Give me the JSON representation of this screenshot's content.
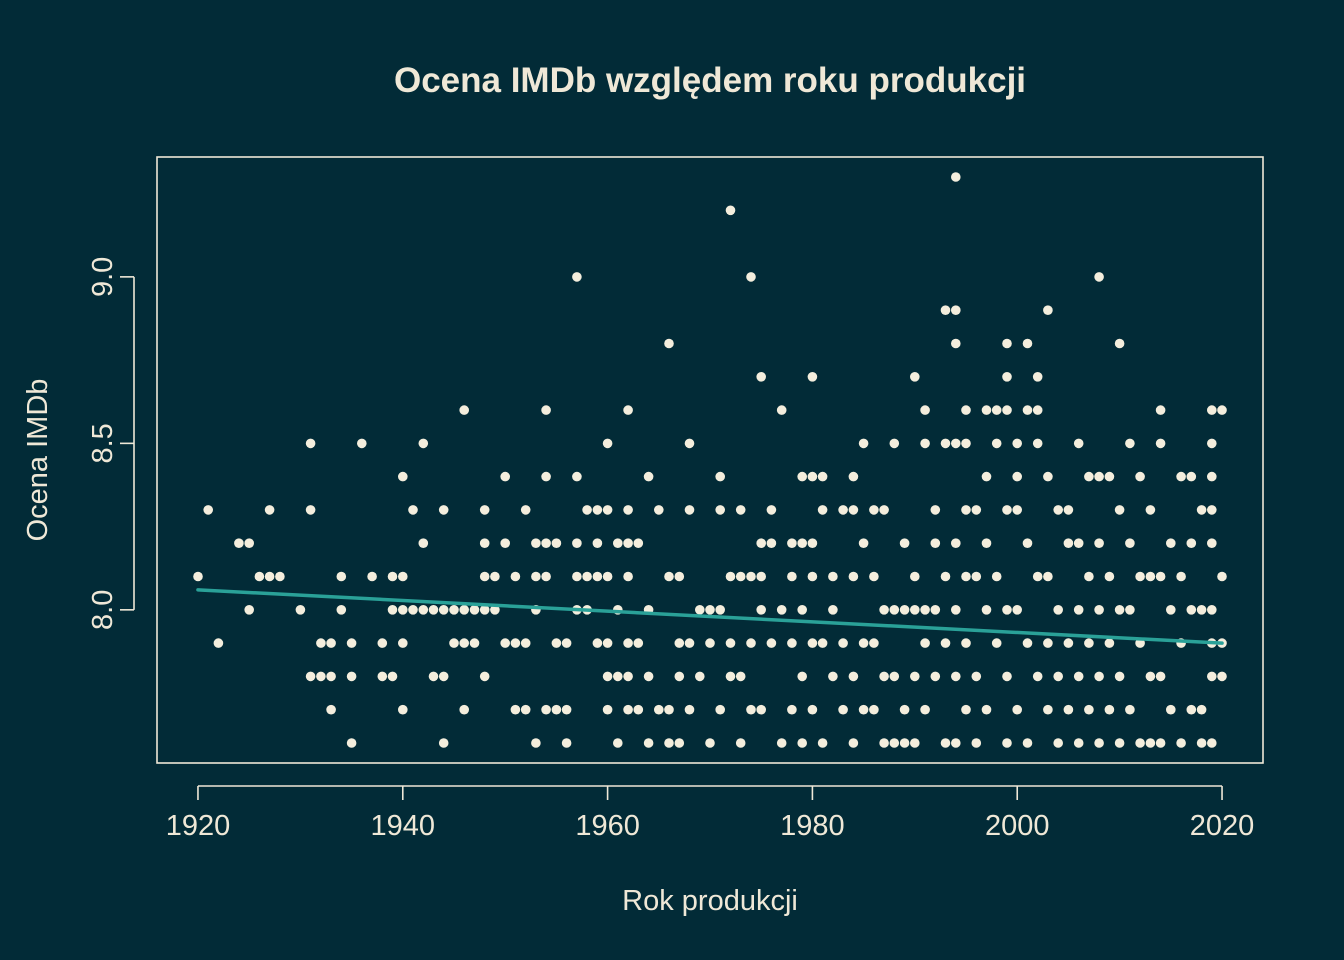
{
  "colors": {
    "background": "#022b37",
    "foreground": "#efe8d7",
    "points": "#f4eedd",
    "trend": "#2aa198"
  },
  "chart_data": {
    "type": "scatter",
    "title": "Ocena IMDb względem roku produkcji",
    "xlabel": "Rok produkcji",
    "ylabel": "Ocena IMDb",
    "xlim": [
      1916,
      2024
    ],
    "ylim": [
      7.54,
      9.36
    ],
    "xticks": [
      1920,
      1940,
      1960,
      1980,
      2000,
      2020
    ],
    "xtick_labels": [
      "1920",
      "1940",
      "1960",
      "1980",
      "2000",
      "2020"
    ],
    "yticks": [
      8.0,
      8.5,
      9.0
    ],
    "ytick_labels": [
      "8.0",
      "8.5",
      "9.0"
    ],
    "grid": false,
    "trend_line": {
      "x": [
        1920,
        2020
      ],
      "y": [
        8.06,
        7.9
      ]
    },
    "points": [
      [
        1920,
        8.1
      ],
      [
        1921,
        8.3
      ],
      [
        1922,
        7.9
      ],
      [
        1924,
        8.2
      ],
      [
        1925,
        8.2
      ],
      [
        1925,
        8.0
      ],
      [
        1926,
        8.1
      ],
      [
        1927,
        8.3
      ],
      [
        1927,
        8.1
      ],
      [
        1928,
        8.1
      ],
      [
        1930,
        8.0
      ],
      [
        1931,
        8.5
      ],
      [
        1931,
        8.3
      ],
      [
        1931,
        7.8
      ],
      [
        1932,
        7.9
      ],
      [
        1932,
        7.8
      ],
      [
        1933,
        7.9
      ],
      [
        1933,
        7.8
      ],
      [
        1933,
        7.7
      ],
      [
        1934,
        8.1
      ],
      [
        1934,
        8.0
      ],
      [
        1935,
        7.9
      ],
      [
        1935,
        7.8
      ],
      [
        1935,
        7.6
      ],
      [
        1936,
        8.5
      ],
      [
        1937,
        8.1
      ],
      [
        1938,
        7.9
      ],
      [
        1938,
        7.8
      ],
      [
        1939,
        8.1
      ],
      [
        1939,
        8.0
      ],
      [
        1939,
        7.8
      ],
      [
        1940,
        8.4
      ],
      [
        1940,
        8.1
      ],
      [
        1940,
        8.0
      ],
      [
        1940,
        7.9
      ],
      [
        1940,
        7.7
      ],
      [
        1941,
        8.3
      ],
      [
        1941,
        8.0
      ],
      [
        1942,
        8.5
      ],
      [
        1942,
        8.2
      ],
      [
        1942,
        8.0
      ],
      [
        1943,
        8.0
      ],
      [
        1943,
        7.8
      ],
      [
        1944,
        8.3
      ],
      [
        1944,
        8.0
      ],
      [
        1944,
        7.8
      ],
      [
        1944,
        7.6
      ],
      [
        1945,
        8.0
      ],
      [
        1945,
        7.9
      ],
      [
        1946,
        8.6
      ],
      [
        1946,
        8.0
      ],
      [
        1946,
        7.9
      ],
      [
        1946,
        7.7
      ],
      [
        1947,
        8.0
      ],
      [
        1947,
        7.9
      ],
      [
        1948,
        8.3
      ],
      [
        1948,
        8.2
      ],
      [
        1948,
        8.1
      ],
      [
        1948,
        8.0
      ],
      [
        1948,
        7.8
      ],
      [
        1949,
        8.1
      ],
      [
        1949,
        8.0
      ],
      [
        1950,
        8.4
      ],
      [
        1950,
        8.2
      ],
      [
        1950,
        7.9
      ],
      [
        1951,
        8.1
      ],
      [
        1951,
        7.9
      ],
      [
        1951,
        7.7
      ],
      [
        1952,
        8.3
      ],
      [
        1952,
        7.9
      ],
      [
        1952,
        7.7
      ],
      [
        1953,
        8.2
      ],
      [
        1953,
        8.1
      ],
      [
        1953,
        8.0
      ],
      [
        1953,
        7.6
      ],
      [
        1954,
        8.6
      ],
      [
        1954,
        8.4
      ],
      [
        1954,
        8.2
      ],
      [
        1954,
        8.1
      ],
      [
        1954,
        7.7
      ],
      [
        1955,
        8.2
      ],
      [
        1955,
        7.9
      ],
      [
        1955,
        7.7
      ],
      [
        1956,
        7.9
      ],
      [
        1956,
        7.7
      ],
      [
        1956,
        7.6
      ],
      [
        1957,
        9.0
      ],
      [
        1957,
        8.4
      ],
      [
        1957,
        8.2
      ],
      [
        1957,
        8.1
      ],
      [
        1957,
        8.0
      ],
      [
        1958,
        8.3
      ],
      [
        1958,
        8.1
      ],
      [
        1958,
        8.0
      ],
      [
        1959,
        8.3
      ],
      [
        1959,
        8.2
      ],
      [
        1959,
        8.1
      ],
      [
        1959,
        7.9
      ],
      [
        1960,
        8.5
      ],
      [
        1960,
        8.3
      ],
      [
        1960,
        8.1
      ],
      [
        1960,
        7.9
      ],
      [
        1960,
        7.8
      ],
      [
        1960,
        7.7
      ],
      [
        1961,
        8.2
      ],
      [
        1961,
        8.0
      ],
      [
        1961,
        7.8
      ],
      [
        1961,
        7.6
      ],
      [
        1962,
        8.6
      ],
      [
        1962,
        8.3
      ],
      [
        1962,
        8.2
      ],
      [
        1962,
        8.1
      ],
      [
        1962,
        7.9
      ],
      [
        1962,
        7.8
      ],
      [
        1962,
        7.7
      ],
      [
        1963,
        8.2
      ],
      [
        1963,
        7.9
      ],
      [
        1963,
        7.7
      ],
      [
        1964,
        8.4
      ],
      [
        1964,
        8.0
      ],
      [
        1964,
        7.8
      ],
      [
        1964,
        7.6
      ],
      [
        1965,
        8.3
      ],
      [
        1965,
        7.7
      ],
      [
        1966,
        8.8
      ],
      [
        1966,
        8.1
      ],
      [
        1966,
        7.7
      ],
      [
        1966,
        7.6
      ],
      [
        1967,
        8.1
      ],
      [
        1967,
        7.9
      ],
      [
        1967,
        7.8
      ],
      [
        1967,
        7.6
      ],
      [
        1968,
        8.5
      ],
      [
        1968,
        8.3
      ],
      [
        1968,
        7.9
      ],
      [
        1968,
        7.7
      ],
      [
        1969,
        8.0
      ],
      [
        1969,
        7.8
      ],
      [
        1970,
        8.0
      ],
      [
        1970,
        7.9
      ],
      [
        1970,
        7.6
      ],
      [
        1971,
        8.4
      ],
      [
        1971,
        8.3
      ],
      [
        1971,
        8.0
      ],
      [
        1971,
        7.7
      ],
      [
        1972,
        9.2
      ],
      [
        1972,
        8.1
      ],
      [
        1972,
        7.9
      ],
      [
        1972,
        7.8
      ],
      [
        1973,
        8.3
      ],
      [
        1973,
        8.1
      ],
      [
        1973,
        7.8
      ],
      [
        1973,
        7.6
      ],
      [
        1974,
        9.0
      ],
      [
        1974,
        8.1
      ],
      [
        1974,
        7.9
      ],
      [
        1974,
        7.7
      ],
      [
        1975,
        8.7
      ],
      [
        1975,
        8.2
      ],
      [
        1975,
        8.1
      ],
      [
        1975,
        8.0
      ],
      [
        1975,
        7.7
      ],
      [
        1976,
        8.3
      ],
      [
        1976,
        8.2
      ],
      [
        1976,
        7.9
      ],
      [
        1977,
        8.6
      ],
      [
        1977,
        8.0
      ],
      [
        1977,
        7.6
      ],
      [
        1978,
        8.2
      ],
      [
        1978,
        8.1
      ],
      [
        1978,
        7.9
      ],
      [
        1978,
        7.7
      ],
      [
        1979,
        8.4
      ],
      [
        1979,
        8.2
      ],
      [
        1979,
        8.0
      ],
      [
        1979,
        7.8
      ],
      [
        1979,
        7.6
      ],
      [
        1980,
        8.7
      ],
      [
        1980,
        8.4
      ],
      [
        1980,
        8.2
      ],
      [
        1980,
        8.1
      ],
      [
        1980,
        7.9
      ],
      [
        1980,
        7.7
      ],
      [
        1981,
        8.4
      ],
      [
        1981,
        8.3
      ],
      [
        1981,
        7.9
      ],
      [
        1981,
        7.6
      ],
      [
        1982,
        8.1
      ],
      [
        1982,
        8.0
      ],
      [
        1982,
        7.8
      ],
      [
        1983,
        8.3
      ],
      [
        1983,
        7.9
      ],
      [
        1983,
        7.7
      ],
      [
        1984,
        8.4
      ],
      [
        1984,
        8.3
      ],
      [
        1984,
        8.1
      ],
      [
        1984,
        7.8
      ],
      [
        1984,
        7.6
      ],
      [
        1985,
        8.5
      ],
      [
        1985,
        8.2
      ],
      [
        1985,
        7.9
      ],
      [
        1985,
        7.7
      ],
      [
        1986,
        8.3
      ],
      [
        1986,
        8.1
      ],
      [
        1986,
        7.9
      ],
      [
        1986,
        7.7
      ],
      [
        1987,
        8.3
      ],
      [
        1987,
        8.0
      ],
      [
        1987,
        7.8
      ],
      [
        1987,
        7.6
      ],
      [
        1988,
        8.5
      ],
      [
        1988,
        8.0
      ],
      [
        1988,
        7.8
      ],
      [
        1988,
        7.6
      ],
      [
        1989,
        8.2
      ],
      [
        1989,
        8.0
      ],
      [
        1989,
        7.7
      ],
      [
        1989,
        7.6
      ],
      [
        1990,
        8.7
      ],
      [
        1990,
        8.1
      ],
      [
        1990,
        8.0
      ],
      [
        1990,
        7.8
      ],
      [
        1990,
        7.6
      ],
      [
        1991,
        8.6
      ],
      [
        1991,
        8.5
      ],
      [
        1991,
        8.0
      ],
      [
        1991,
        7.9
      ],
      [
        1991,
        7.7
      ],
      [
        1992,
        8.3
      ],
      [
        1992,
        8.2
      ],
      [
        1992,
        8.0
      ],
      [
        1992,
        7.8
      ],
      [
        1993,
        8.9
      ],
      [
        1993,
        8.5
      ],
      [
        1993,
        8.1
      ],
      [
        1993,
        7.9
      ],
      [
        1993,
        7.6
      ],
      [
        1994,
        9.3
      ],
      [
        1994,
        8.9
      ],
      [
        1994,
        8.8
      ],
      [
        1994,
        8.5
      ],
      [
        1994,
        8.2
      ],
      [
        1994,
        8.0
      ],
      [
        1994,
        7.8
      ],
      [
        1994,
        7.6
      ],
      [
        1995,
        8.6
      ],
      [
        1995,
        8.5
      ],
      [
        1995,
        8.3
      ],
      [
        1995,
        8.1
      ],
      [
        1995,
        7.9
      ],
      [
        1995,
        7.7
      ],
      [
        1996,
        8.3
      ],
      [
        1996,
        8.1
      ],
      [
        1996,
        7.8
      ],
      [
        1996,
        7.6
      ],
      [
        1997,
        8.6
      ],
      [
        1997,
        8.4
      ],
      [
        1997,
        8.2
      ],
      [
        1997,
        8.0
      ],
      [
        1997,
        7.7
      ],
      [
        1998,
        8.6
      ],
      [
        1998,
        8.5
      ],
      [
        1998,
        8.1
      ],
      [
        1998,
        7.9
      ],
      [
        1999,
        8.8
      ],
      [
        1999,
        8.7
      ],
      [
        1999,
        8.6
      ],
      [
        1999,
        8.3
      ],
      [
        1999,
        8.0
      ],
      [
        1999,
        7.8
      ],
      [
        1999,
        7.6
      ],
      [
        2000,
        8.5
      ],
      [
        2000,
        8.4
      ],
      [
        2000,
        8.3
      ],
      [
        2000,
        8.0
      ],
      [
        2000,
        7.7
      ],
      [
        2001,
        8.8
      ],
      [
        2001,
        8.6
      ],
      [
        2001,
        8.2
      ],
      [
        2001,
        7.9
      ],
      [
        2001,
        7.6
      ],
      [
        2002,
        8.7
      ],
      [
        2002,
        8.6
      ],
      [
        2002,
        8.5
      ],
      [
        2002,
        8.1
      ],
      [
        2002,
        7.8
      ],
      [
        2003,
        8.9
      ],
      [
        2003,
        8.4
      ],
      [
        2003,
        8.1
      ],
      [
        2003,
        7.9
      ],
      [
        2003,
        7.7
      ],
      [
        2004,
        8.3
      ],
      [
        2004,
        8.0
      ],
      [
        2004,
        7.8
      ],
      [
        2004,
        7.6
      ],
      [
        2005,
        8.3
      ],
      [
        2005,
        8.2
      ],
      [
        2005,
        7.9
      ],
      [
        2005,
        7.7
      ],
      [
        2006,
        8.5
      ],
      [
        2006,
        8.2
      ],
      [
        2006,
        8.0
      ],
      [
        2006,
        7.8
      ],
      [
        2006,
        7.6
      ],
      [
        2007,
        8.4
      ],
      [
        2007,
        8.1
      ],
      [
        2007,
        7.9
      ],
      [
        2007,
        7.7
      ],
      [
        2008,
        9.0
      ],
      [
        2008,
        8.4
      ],
      [
        2008,
        8.2
      ],
      [
        2008,
        8.0
      ],
      [
        2008,
        7.8
      ],
      [
        2008,
        7.6
      ],
      [
        2009,
        8.4
      ],
      [
        2009,
        8.1
      ],
      [
        2009,
        7.9
      ],
      [
        2009,
        7.7
      ],
      [
        2010,
        8.8
      ],
      [
        2010,
        8.3
      ],
      [
        2010,
        8.0
      ],
      [
        2010,
        7.8
      ],
      [
        2010,
        7.6
      ],
      [
        2011,
        8.5
      ],
      [
        2011,
        8.2
      ],
      [
        2011,
        8.0
      ],
      [
        2011,
        7.7
      ],
      [
        2012,
        8.4
      ],
      [
        2012,
        8.1
      ],
      [
        2012,
        7.9
      ],
      [
        2012,
        7.6
      ],
      [
        2013,
        8.3
      ],
      [
        2013,
        8.1
      ],
      [
        2013,
        7.8
      ],
      [
        2013,
        7.6
      ],
      [
        2014,
        8.6
      ],
      [
        2014,
        8.5
      ],
      [
        2014,
        8.1
      ],
      [
        2014,
        7.8
      ],
      [
        2014,
        7.6
      ],
      [
        2015,
        8.2
      ],
      [
        2015,
        8.0
      ],
      [
        2015,
        7.7
      ],
      [
        2016,
        8.4
      ],
      [
        2016,
        8.1
      ],
      [
        2016,
        7.9
      ],
      [
        2016,
        7.6
      ],
      [
        2017,
        8.4
      ],
      [
        2017,
        8.2
      ],
      [
        2017,
        8.0
      ],
      [
        2017,
        7.7
      ],
      [
        2018,
        8.3
      ],
      [
        2018,
        8.0
      ],
      [
        2018,
        7.7
      ],
      [
        2018,
        7.6
      ],
      [
        2019,
        8.6
      ],
      [
        2019,
        8.5
      ],
      [
        2019,
        8.4
      ],
      [
        2019,
        8.3
      ],
      [
        2019,
        8.2
      ],
      [
        2019,
        8.0
      ],
      [
        2019,
        7.9
      ],
      [
        2019,
        7.8
      ],
      [
        2019,
        7.6
      ],
      [
        2020,
        8.6
      ],
      [
        2020,
        8.1
      ],
      [
        2020,
        7.9
      ],
      [
        2020,
        7.8
      ]
    ]
  }
}
